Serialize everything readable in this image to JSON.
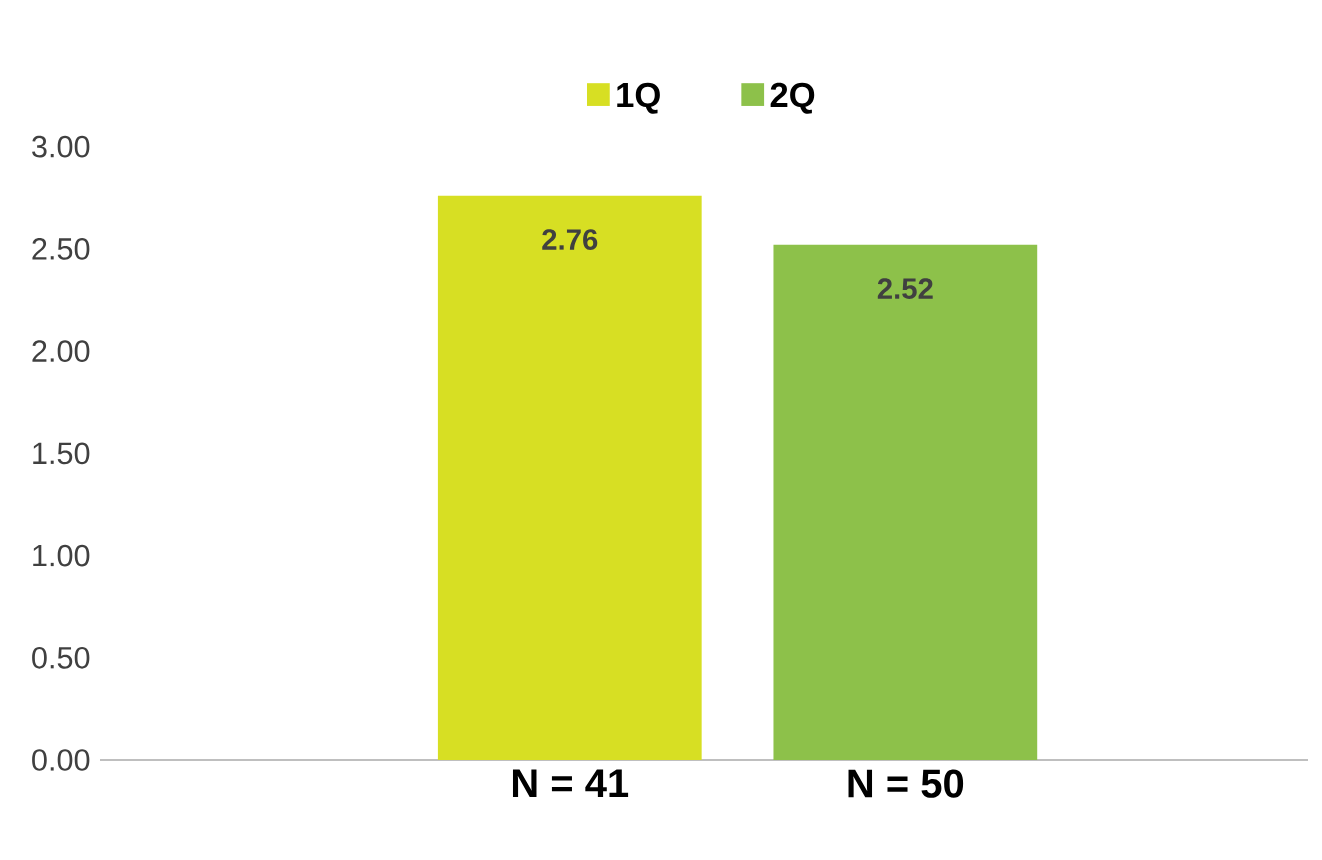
{
  "chart_data": {
    "type": "bar",
    "categories": [
      "N = 41",
      "N = 50"
    ],
    "series": [
      {
        "name": "1Q",
        "color": "#d7df23",
        "values": [
          2.76,
          null
        ]
      },
      {
        "name": "2Q",
        "color": "#8dc14a",
        "values": [
          null,
          2.52
        ]
      }
    ],
    "ylim": [
      0,
      3
    ],
    "yticks": [
      {
        "value": 0,
        "label": "0.00"
      },
      {
        "value": 0.5,
        "label": "0.50"
      },
      {
        "value": 1,
        "label": "1.00"
      },
      {
        "value": 1.5,
        "label": "1.50"
      },
      {
        "value": 2,
        "label": "2.00"
      },
      {
        "value": 2.5,
        "label": "2.50"
      },
      {
        "value": 3,
        "label": "3.00"
      }
    ],
    "data_labels": true,
    "grid": false,
    "legend": "top"
  }
}
